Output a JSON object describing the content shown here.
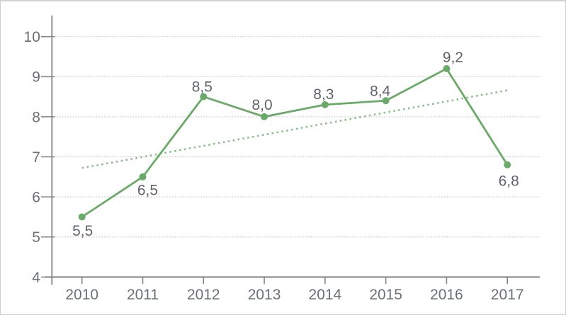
{
  "figure": {
    "background": "#ffffff",
    "frame_color": "#d2d2d2"
  },
  "chart_data": {
    "type": "line",
    "title": "",
    "xlabel": "",
    "ylabel": "",
    "categories": [
      "2010",
      "2011",
      "2012",
      "2013",
      "2014",
      "2015",
      "2016",
      "2017"
    ],
    "series": [
      {
        "name": "main-series",
        "values": [
          5.5,
          6.5,
          8.5,
          8.0,
          8.3,
          8.4,
          9.2,
          6.8
        ],
        "point_labels": [
          "5,5",
          "6,5",
          "8,5",
          "8,0",
          "8,3",
          "8,4",
          "9,2",
          "6,8"
        ],
        "label_offsets": [
          [
            1,
            27
          ],
          [
            7,
            26
          ],
          [
            -2,
            -7
          ],
          [
            -3,
            -10
          ],
          [
            -2,
            -8
          ],
          [
            -8,
            -7
          ],
          [
            9,
            -9
          ],
          [
            2,
            30
          ]
        ],
        "color": "#6aa967",
        "marker": "circle",
        "marker_radius": 5,
        "line_width": 2.8
      }
    ],
    "trend": {
      "name": "linear-trendline",
      "style": "dotted",
      "color": "#8cbe89",
      "start_value": 6.72,
      "end_value": 8.66,
      "line_width": 2.6
    },
    "ylim": [
      4,
      10
    ],
    "yticks": [
      10,
      9,
      8,
      7,
      6,
      5,
      4
    ],
    "ytick_labels": [
      "10",
      "9",
      "8",
      "7",
      "6",
      "5",
      "4"
    ],
    "grid": "horizontal-dotted",
    "legend": "none",
    "colors": {
      "axis": "#858585",
      "grid": "#c6c6c6",
      "tick_label": "#6b7077",
      "point_label": "#5f646a"
    }
  }
}
